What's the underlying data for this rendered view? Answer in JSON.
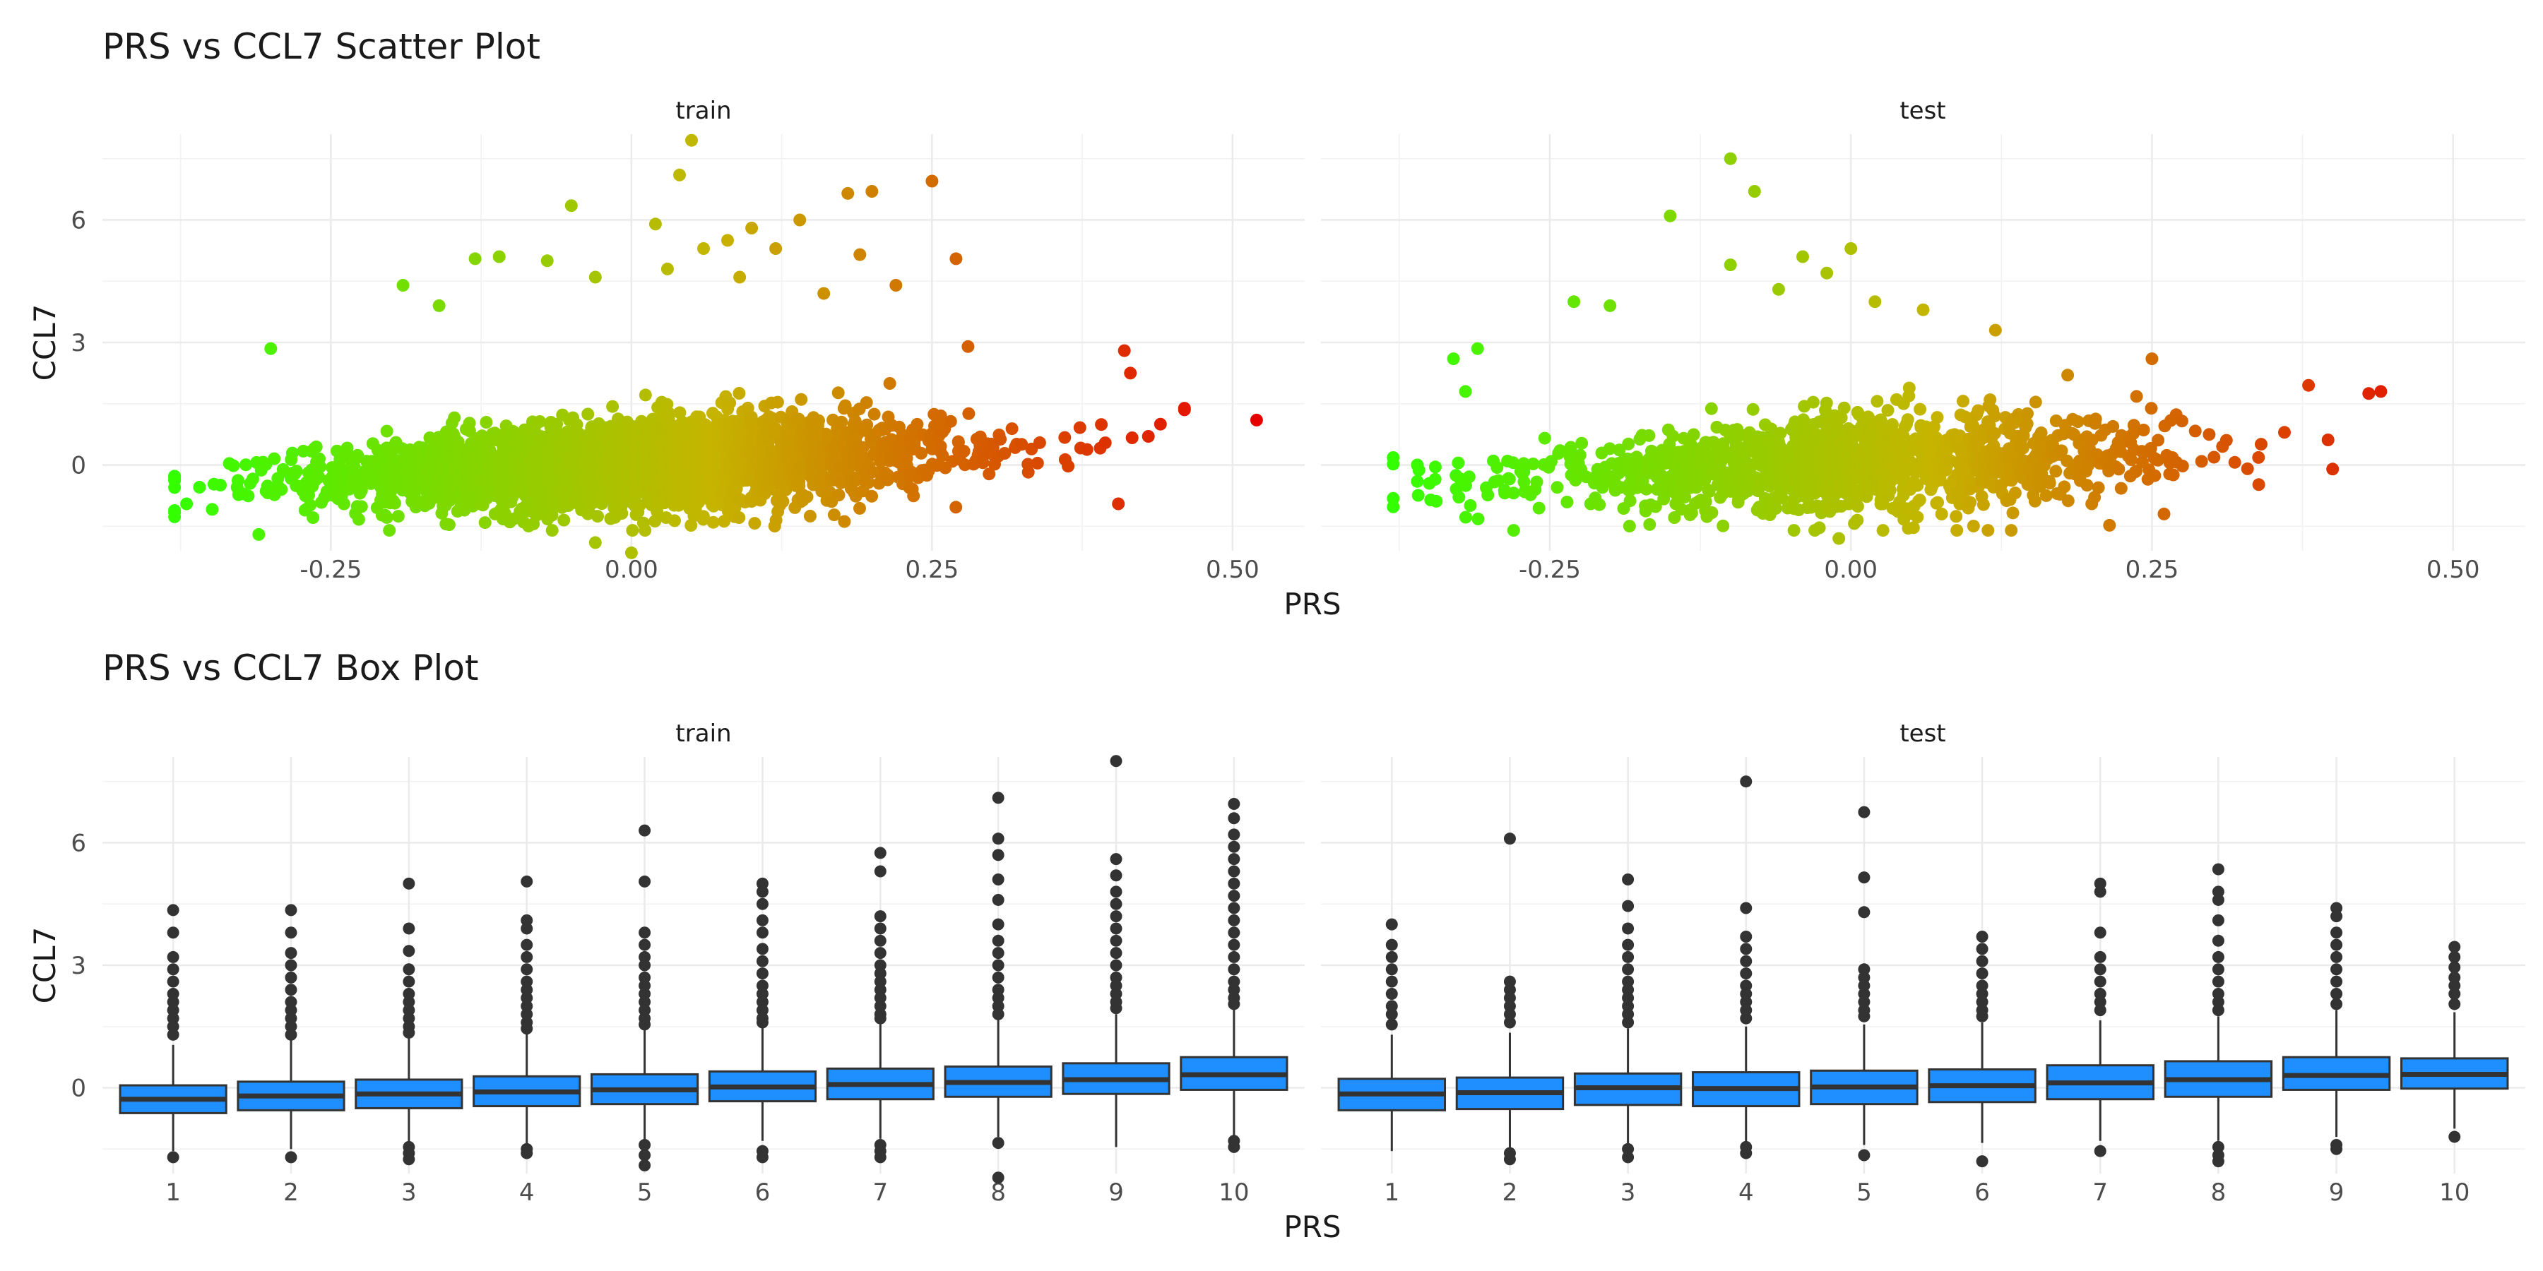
{
  "titles": {
    "scatter": "PRS vs CCL7 Scatter Plot",
    "box": "PRS vs CCL7 Box Plot"
  },
  "colors": {
    "low": "#33ff00",
    "mid": "#c6b400",
    "high": "#e60000",
    "box_fill": "#1f8fff"
  },
  "chart_data": [
    {
      "type": "scatter",
      "title": "PRS vs CCL7 Scatter Plot",
      "xlabel": "PRS",
      "ylabel": "CCL7",
      "facets": [
        "train",
        "test"
      ],
      "xlim": [
        -0.44,
        0.56
      ],
      "ylim": [
        -2.1,
        8.1
      ],
      "x_ticks": [
        -0.25,
        0.0,
        0.25,
        0.5
      ],
      "x_tick_labels": [
        "-0.25",
        "0.00",
        "0.25",
        "0.50"
      ],
      "y_ticks": [
        0,
        3,
        6
      ],
      "color_scale": {
        "by": "PRS",
        "low": "#33ff00",
        "mid": "#c6b400",
        "high": "#e60000",
        "range": [
          -0.38,
          0.52
        ]
      },
      "grid": true,
      "legend": "none",
      "cloud": {
        "train": {
          "n_points": 2600,
          "x_mean": 0.0,
          "x_sd": 0.13,
          "x_range": [
            -0.38,
            0.46
          ],
          "y_mean": 0.0,
          "y_sd": 0.55,
          "y_range": [
            -1.6,
            3.0
          ]
        },
        "test": {
          "n_points": 1300,
          "x_mean": 0.0,
          "x_sd": 0.13,
          "x_range": [
            -0.38,
            0.44
          ],
          "y_mean": 0.0,
          "y_sd": 0.55,
          "y_range": [
            -1.6,
            3.0
          ]
        }
      },
      "series": [
        {
          "facet": "train",
          "points": [
            [
              0.52,
              1.1
            ],
            [
              0.46,
              1.35
            ],
            [
              0.44,
              1.0
            ],
            [
              0.43,
              0.7
            ],
            [
              0.415,
              2.25
            ],
            [
              0.41,
              2.8
            ],
            [
              0.405,
              -0.95
            ],
            [
              0.05,
              7.95
            ],
            [
              0.04,
              7.1
            ],
            [
              0.25,
              6.95
            ],
            [
              0.18,
              6.65
            ],
            [
              0.2,
              6.7
            ],
            [
              -0.05,
              6.35
            ],
            [
              0.27,
              5.05
            ],
            [
              0.14,
              6.0
            ],
            [
              0.1,
              5.8
            ],
            [
              0.02,
              5.9
            ],
            [
              -0.11,
              5.1
            ],
            [
              -0.13,
              5.05
            ],
            [
              -0.19,
              4.4
            ],
            [
              -0.3,
              2.85
            ],
            [
              0.28,
              2.9
            ],
            [
              0.22,
              4.4
            ],
            [
              0.19,
              5.15
            ],
            [
              0.08,
              5.5
            ],
            [
              -0.07,
              5.0
            ],
            [
              0.12,
              5.3
            ],
            [
              0.06,
              5.3
            ],
            [
              0.03,
              4.8
            ],
            [
              -0.03,
              4.6
            ],
            [
              0.09,
              4.6
            ],
            [
              0.16,
              4.2
            ],
            [
              -0.16,
              3.9
            ],
            [
              0.0,
              -2.15
            ],
            [
              -0.03,
              -1.9
            ],
            [
              -0.31,
              -1.7
            ],
            [
              -0.37,
              -0.95
            ],
            [
              -0.38,
              -0.3
            ]
          ]
        },
        {
          "facet": "test",
          "points": [
            [
              0.44,
              1.8
            ],
            [
              0.43,
              1.75
            ],
            [
              0.38,
              1.95
            ],
            [
              0.4,
              -0.1
            ],
            [
              0.36,
              0.8
            ],
            [
              0.25,
              2.6
            ],
            [
              -0.1,
              7.5
            ],
            [
              -0.08,
              6.7
            ],
            [
              -0.15,
              6.1
            ],
            [
              -0.04,
              5.1
            ],
            [
              0.0,
              5.3
            ],
            [
              -0.02,
              4.7
            ],
            [
              -0.1,
              4.9
            ],
            [
              -0.2,
              3.9
            ],
            [
              -0.23,
              4.0
            ],
            [
              -0.31,
              2.85
            ],
            [
              -0.33,
              2.6
            ],
            [
              -0.32,
              1.8
            ],
            [
              0.12,
              3.3
            ],
            [
              0.18,
              2.2
            ],
            [
              0.02,
              4.0
            ],
            [
              -0.06,
              4.3
            ],
            [
              0.06,
              3.8
            ],
            [
              -0.36,
              0.0
            ],
            [
              -0.36,
              -0.4
            ],
            [
              -0.35,
              -0.45
            ],
            [
              -0.28,
              -1.6
            ],
            [
              -0.01,
              -1.8
            ],
            [
              0.2,
              -0.95
            ],
            [
              0.26,
              -1.2
            ]
          ]
        }
      ]
    },
    {
      "type": "box",
      "title": "PRS vs CCL7 Box Plot",
      "xlabel": "PRS",
      "ylabel": "CCL7",
      "facets": [
        "train",
        "test"
      ],
      "categories": [
        "1",
        "2",
        "3",
        "4",
        "5",
        "6",
        "7",
        "8",
        "9",
        "10"
      ],
      "ylim": [
        -2.1,
        8.1
      ],
      "y_ticks": [
        0,
        3,
        6
      ],
      "grid": true,
      "legend": "none",
      "series": [
        {
          "facet": "train",
          "boxes": [
            {
              "q1": -0.62,
              "median": -0.28,
              "q3": 0.06,
              "lower": -1.55,
              "upper": 1.05,
              "outliers": [
                4.35,
                3.8,
                3.2,
                2.9,
                2.6,
                2.3,
                2.1,
                1.9,
                1.7,
                1.5,
                1.3,
                -1.7
              ]
            },
            {
              "q1": -0.55,
              "median": -0.2,
              "q3": 0.15,
              "lower": -1.5,
              "upper": 1.2,
              "outliers": [
                4.35,
                3.8,
                3.3,
                3.0,
                2.7,
                2.4,
                2.1,
                1.9,
                1.7,
                1.5,
                1.3,
                -1.7
              ]
            },
            {
              "q1": -0.5,
              "median": -0.15,
              "q3": 0.2,
              "lower": -1.45,
              "upper": 1.25,
              "outliers": [
                5.0,
                3.9,
                3.35,
                2.9,
                2.6,
                2.3,
                2.1,
                1.9,
                1.7,
                1.5,
                1.35,
                -1.45,
                -1.6,
                -1.75
              ]
            },
            {
              "q1": -0.45,
              "median": -0.1,
              "q3": 0.28,
              "lower": -1.4,
              "upper": 1.35,
              "outliers": [
                5.05,
                4.1,
                3.9,
                3.5,
                3.2,
                2.9,
                2.6,
                2.4,
                2.2,
                2.0,
                1.8,
                1.6,
                1.45,
                -1.5,
                -1.6
              ]
            },
            {
              "q1": -0.4,
              "median": -0.05,
              "q3": 0.33,
              "lower": -1.35,
              "upper": 1.45,
              "outliers": [
                6.3,
                5.05,
                3.8,
                3.5,
                3.2,
                3.0,
                2.7,
                2.5,
                2.3,
                2.1,
                1.9,
                1.7,
                1.55,
                -1.4,
                -1.65,
                -1.9
              ]
            },
            {
              "q1": -0.33,
              "median": 0.02,
              "q3": 0.4,
              "lower": -1.3,
              "upper": 1.5,
              "outliers": [
                5.0,
                4.8,
                4.5,
                4.1,
                3.8,
                3.4,
                3.1,
                2.8,
                2.5,
                2.3,
                2.1,
                1.9,
                1.7,
                1.6,
                -1.55,
                -1.7
              ]
            },
            {
              "q1": -0.28,
              "median": 0.08,
              "q3": 0.47,
              "lower": -1.25,
              "upper": 1.6,
              "outliers": [
                5.75,
                5.3,
                4.2,
                3.9,
                3.6,
                3.3,
                3.0,
                2.8,
                2.6,
                2.4,
                2.2,
                2.0,
                1.8,
                1.7,
                -1.4,
                -1.55,
                -1.7
              ]
            },
            {
              "q1": -0.22,
              "median": 0.13,
              "q3": 0.52,
              "lower": -1.2,
              "upper": 1.7,
              "outliers": [
                7.1,
                6.1,
                5.7,
                5.1,
                4.6,
                4.0,
                3.6,
                3.3,
                3.0,
                2.7,
                2.4,
                2.2,
                2.0,
                1.8,
                -1.35,
                -2.2
              ]
            },
            {
              "q1": -0.15,
              "median": 0.2,
              "q3": 0.6,
              "lower": -1.45,
              "upper": 1.8,
              "outliers": [
                8.0,
                5.6,
                5.2,
                4.8,
                4.5,
                4.2,
                3.9,
                3.6,
                3.3,
                3.0,
                2.7,
                2.5,
                2.3,
                2.1,
                1.95
              ]
            },
            {
              "q1": -0.05,
              "median": 0.32,
              "q3": 0.75,
              "lower": -1.2,
              "upper": 1.95,
              "outliers": [
                6.95,
                6.6,
                6.2,
                5.9,
                5.6,
                5.3,
                5.0,
                4.7,
                4.4,
                4.1,
                3.8,
                3.5,
                3.2,
                2.9,
                2.6,
                2.4,
                2.2,
                2.05,
                -1.3,
                -1.45
              ]
            }
          ]
        },
        {
          "facet": "test",
          "boxes": [
            {
              "q1": -0.55,
              "median": -0.15,
              "q3": 0.22,
              "lower": -1.55,
              "upper": 1.3,
              "outliers": [
                4.0,
                3.5,
                3.2,
                2.9,
                2.6,
                2.3,
                2.0,
                1.8,
                1.55
              ]
            },
            {
              "q1": -0.52,
              "median": -0.12,
              "q3": 0.25,
              "lower": -1.5,
              "upper": 1.35,
              "outliers": [
                6.1,
                2.6,
                2.4,
                2.2,
                2.0,
                1.8,
                1.6,
                -1.6,
                -1.75
              ]
            },
            {
              "q1": -0.42,
              "median": 0.0,
              "q3": 0.35,
              "lower": -1.45,
              "upper": 1.45,
              "outliers": [
                5.1,
                4.45,
                3.9,
                3.5,
                3.2,
                2.9,
                2.6,
                2.4,
                2.2,
                2.0,
                1.8,
                1.6,
                -1.5,
                -1.7
              ]
            },
            {
              "q1": -0.45,
              "median": -0.02,
              "q3": 0.38,
              "lower": -1.55,
              "upper": 1.5,
              "outliers": [
                7.5,
                4.4,
                3.7,
                3.4,
                3.1,
                2.8,
                2.5,
                2.3,
                2.1,
                1.9,
                1.7,
                -1.45,
                -1.6
              ]
            },
            {
              "q1": -0.4,
              "median": 0.02,
              "q3": 0.42,
              "lower": -1.4,
              "upper": 1.55,
              "outliers": [
                6.75,
                5.15,
                4.3,
                2.9,
                2.7,
                2.5,
                2.3,
                2.1,
                1.9,
                1.75,
                -1.65
              ]
            },
            {
              "q1": -0.35,
              "median": 0.05,
              "q3": 0.45,
              "lower": -1.35,
              "upper": 1.6,
              "outliers": [
                3.7,
                3.4,
                3.1,
                2.8,
                2.5,
                2.3,
                2.1,
                1.9,
                1.75,
                -1.8
              ]
            },
            {
              "q1": -0.28,
              "median": 0.12,
              "q3": 0.55,
              "lower": -1.3,
              "upper": 1.65,
              "outliers": [
                5.0,
                4.8,
                3.8,
                3.2,
                2.9,
                2.6,
                2.3,
                2.1,
                1.9,
                -1.55
              ]
            },
            {
              "q1": -0.22,
              "median": 0.2,
              "q3": 0.65,
              "lower": -1.3,
              "upper": 1.75,
              "outliers": [
                5.35,
                4.8,
                4.6,
                4.1,
                3.6,
                3.2,
                2.9,
                2.6,
                2.3,
                2.1,
                1.9,
                -1.45,
                -1.65,
                -1.8
              ]
            },
            {
              "q1": -0.05,
              "median": 0.3,
              "q3": 0.75,
              "lower": -1.2,
              "upper": 1.9,
              "outliers": [
                4.4,
                4.2,
                3.8,
                3.5,
                3.2,
                2.9,
                2.6,
                2.3,
                2.05,
                -1.4,
                -1.5
              ]
            },
            {
              "q1": -0.02,
              "median": 0.33,
              "q3": 0.72,
              "lower": -1.0,
              "upper": 1.85,
              "outliers": [
                3.45,
                3.2,
                2.95,
                2.7,
                2.5,
                2.3,
                2.05,
                -1.2
              ]
            }
          ]
        }
      ]
    }
  ]
}
